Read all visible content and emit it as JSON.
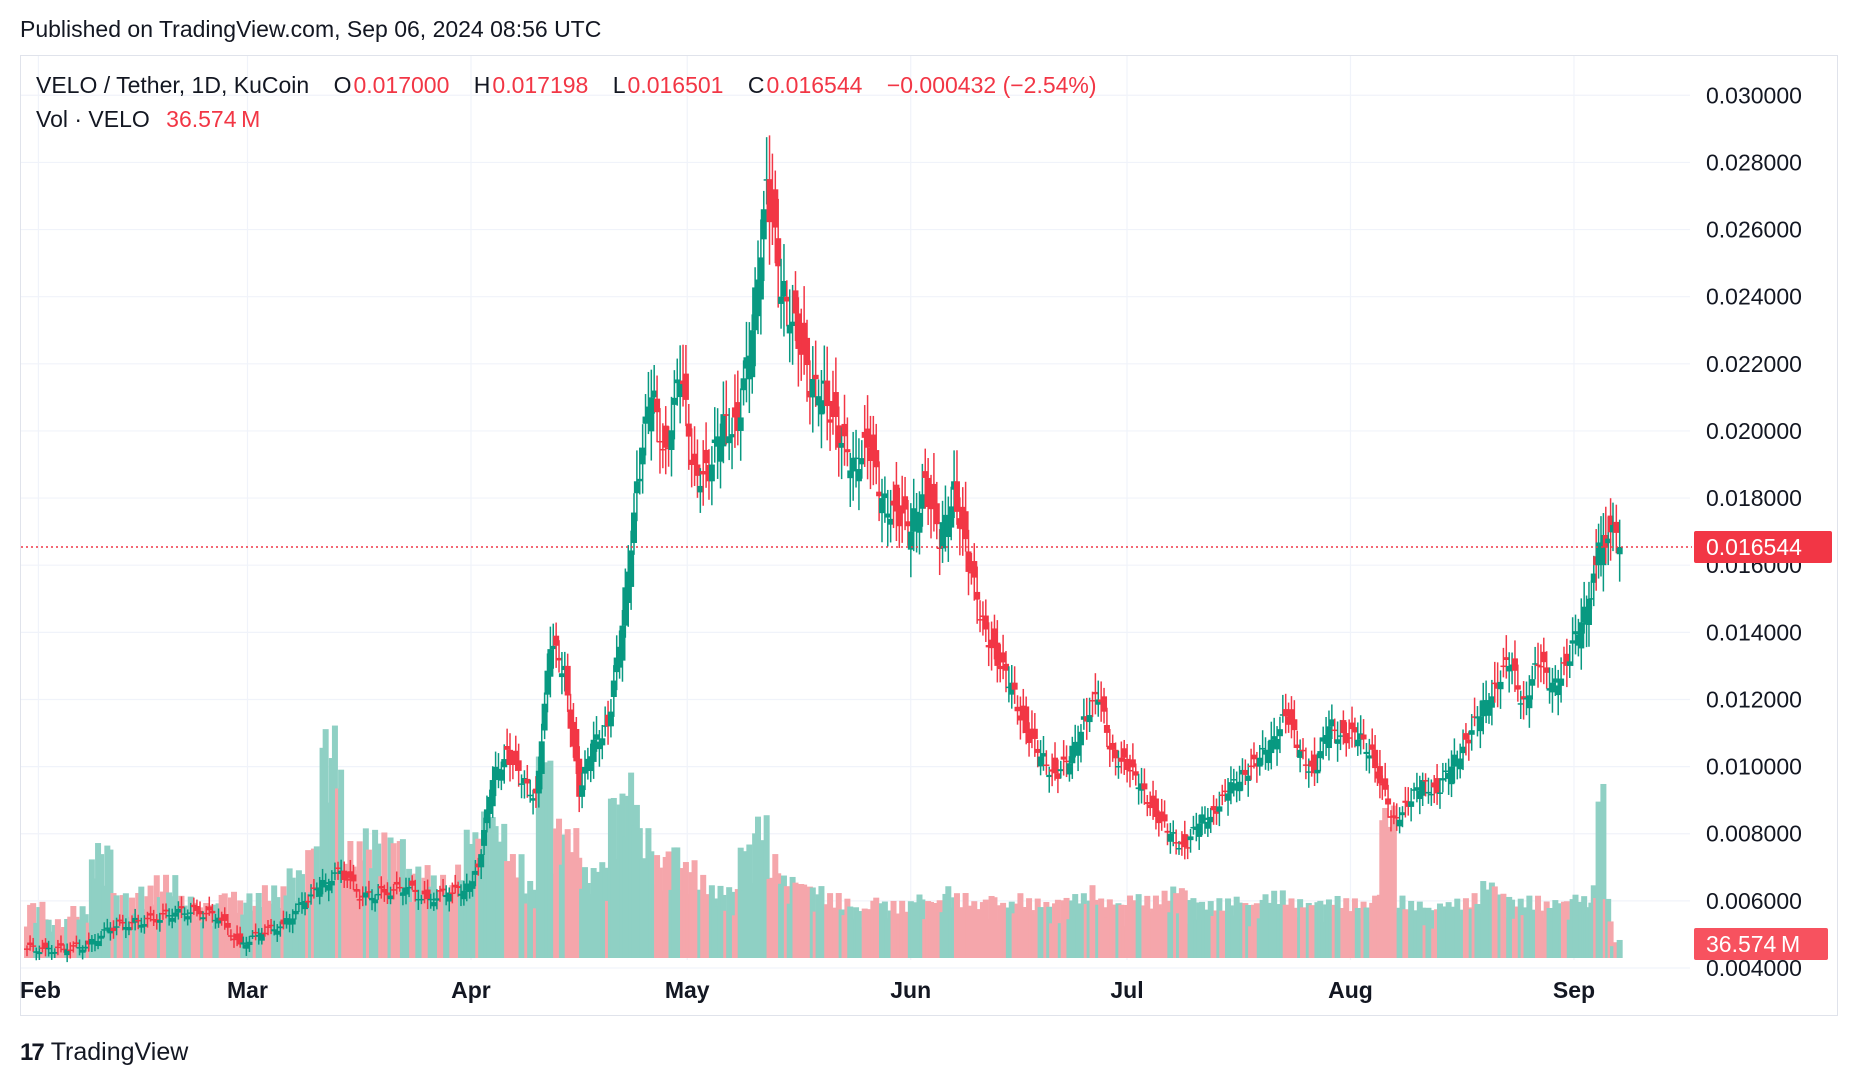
{
  "header": {
    "published": "Published on TradingView.com, Sep 06, 2024 08:56 UTC"
  },
  "legend": {
    "symbol": "VELO / Tether, 1D, KuCoin",
    "o_label": "O",
    "o_value": "0.017000",
    "h_label": "H",
    "h_value": "0.017198",
    "l_label": "L",
    "l_value": "0.016501",
    "c_label": "C",
    "c_value": "0.016544",
    "change": "−0.000432 (−2.54%)",
    "vol_label": "Vol · VELO",
    "vol_value": "36.574 M"
  },
  "footer": {
    "brand": "TradingView",
    "brand_mark": "17"
  },
  "colors": {
    "up": "#089981",
    "down": "#f23645",
    "up_vol": "#8fd0c4",
    "down_vol": "#f5a6ab",
    "grid": "#f0f3fa"
  },
  "chart_data": {
    "type": "candlestick",
    "y_ticks": [
      "0.030000",
      "0.028000",
      "0.026000",
      "0.024000",
      "0.022000",
      "0.020000",
      "0.018000",
      "0.016000",
      "0.014000",
      "0.012000",
      "0.010000",
      "0.008000",
      "0.006000",
      "0.004000"
    ],
    "ylim": [
      0.0026,
      0.0312
    ],
    "x_labels": [
      "Feb",
      "Mar",
      "Apr",
      "May",
      "Jun",
      "Jul",
      "Aug",
      "Sep"
    ],
    "last_price_label": "0.016544",
    "last_price": 0.016544,
    "volume_label": "36.574 M",
    "grid": true,
    "points": [
      {
        "d": "2024-01-30",
        "c": 0.00457,
        "v": 2.2
      },
      {
        "d": "2024-02-02",
        "c": 0.00455,
        "v": 1.5
      },
      {
        "d": "2024-02-05",
        "c": 0.0047,
        "v": 2.0
      },
      {
        "d": "2024-02-08",
        "c": 0.0052,
        "v": 4.5
      },
      {
        "d": "2024-02-11",
        "c": 0.00535,
        "v": 2.6
      },
      {
        "d": "2024-02-14",
        "c": 0.00545,
        "v": 2.8
      },
      {
        "d": "2024-02-17",
        "c": 0.00565,
        "v": 3.2
      },
      {
        "d": "2024-02-20",
        "c": 0.0057,
        "v": 2.4
      },
      {
        "d": "2024-02-23",
        "c": 0.0055,
        "v": 2.2
      },
      {
        "d": "2024-02-26",
        "c": 0.0047,
        "v": 2.6
      },
      {
        "d": "2024-02-29",
        "c": 0.00505,
        "v": 2.5
      },
      {
        "d": "2024-03-03",
        "c": 0.0053,
        "v": 2.8
      },
      {
        "d": "2024-03-06",
        "c": 0.006,
        "v": 3.5
      },
      {
        "d": "2024-03-09",
        "c": 0.0064,
        "v": 4.5
      },
      {
        "d": "2024-03-11",
        "c": 0.0069,
        "v": 9.0
      },
      {
        "d": "2024-03-14",
        "c": 0.0061,
        "v": 4.5
      },
      {
        "d": "2024-03-17",
        "c": 0.00625,
        "v": 5.0
      },
      {
        "d": "2024-03-20",
        "c": 0.0064,
        "v": 4.8
      },
      {
        "d": "2024-03-23",
        "c": 0.00605,
        "v": 3.6
      },
      {
        "d": "2024-03-26",
        "c": 0.00625,
        "v": 3.2
      },
      {
        "d": "2024-03-29",
        "c": 0.0063,
        "v": 3.6
      },
      {
        "d": "2024-03-31",
        "c": 0.007,
        "v": 5.0
      },
      {
        "d": "2024-04-02",
        "c": 0.0096,
        "v": 6.0
      },
      {
        "d": "2024-04-04",
        "c": 0.0105,
        "v": 5.2
      },
      {
        "d": "2024-04-06",
        "c": 0.0095,
        "v": 4.0
      },
      {
        "d": "2024-04-08",
        "c": 0.0092,
        "v": 3.0
      },
      {
        "d": "2024-04-10",
        "c": 0.0135,
        "v": 8.0
      },
      {
        "d": "2024-04-12",
        "c": 0.013,
        "v": 5.5
      },
      {
        "d": "2024-04-14",
        "c": 0.0091,
        "v": 5.0
      },
      {
        "d": "2024-04-16",
        "c": 0.0108,
        "v": 3.5
      },
      {
        "d": "2024-04-18",
        "c": 0.0112,
        "v": 3.8
      },
      {
        "d": "2024-04-20",
        "c": 0.0142,
        "v": 6.5
      },
      {
        "d": "2024-04-22",
        "c": 0.0185,
        "v": 7.2
      },
      {
        "d": "2024-04-24",
        "c": 0.021,
        "v": 5.0
      },
      {
        "d": "2024-04-26",
        "c": 0.0195,
        "v": 4.0
      },
      {
        "d": "2024-04-28",
        "c": 0.0215,
        "v": 4.5
      },
      {
        "d": "2024-04-30",
        "c": 0.019,
        "v": 3.8
      },
      {
        "d": "2024-05-02",
        "c": 0.0185,
        "v": 3.2
      },
      {
        "d": "2024-05-04",
        "c": 0.0205,
        "v": 2.8
      },
      {
        "d": "2024-05-06",
        "c": 0.02,
        "v": 2.8
      },
      {
        "d": "2024-05-08",
        "c": 0.023,
        "v": 4.5
      },
      {
        "d": "2024-05-10",
        "c": 0.0275,
        "v": 5.5
      },
      {
        "d": "2024-05-12",
        "c": 0.024,
        "v": 4.0
      },
      {
        "d": "2024-05-14",
        "c": 0.0235,
        "v": 3.2
      },
      {
        "d": "2024-05-16",
        "c": 0.021,
        "v": 3.0
      },
      {
        "d": "2024-05-18",
        "c": 0.0215,
        "v": 2.8
      },
      {
        "d": "2024-05-20",
        "c": 0.0195,
        "v": 2.5
      },
      {
        "d": "2024-05-22",
        "c": 0.0192,
        "v": 2.3
      },
      {
        "d": "2024-05-24",
        "c": 0.0195,
        "v": 2.0
      },
      {
        "d": "2024-05-26",
        "c": 0.018,
        "v": 2.4
      },
      {
        "d": "2024-05-28",
        "c": 0.0176,
        "v": 2.2
      },
      {
        "d": "2024-05-30",
        "c": 0.017,
        "v": 2.2
      },
      {
        "d": "2024-06-01",
        "c": 0.0186,
        "v": 2.5
      },
      {
        "d": "2024-06-03",
        "c": 0.0165,
        "v": 2.3
      },
      {
        "d": "2024-06-05",
        "c": 0.0185,
        "v": 2.8
      },
      {
        "d": "2024-06-07",
        "c": 0.0158,
        "v": 2.5
      },
      {
        "d": "2024-06-09",
        "c": 0.0145,
        "v": 2.2
      },
      {
        "d": "2024-06-11",
        "c": 0.013,
        "v": 2.5
      },
      {
        "d": "2024-06-13",
        "c": 0.0125,
        "v": 2.2
      },
      {
        "d": "2024-06-15",
        "c": 0.011,
        "v": 2.5
      },
      {
        "d": "2024-06-17",
        "c": 0.0103,
        "v": 2.3
      },
      {
        "d": "2024-06-19",
        "c": 0.0098,
        "v": 2.2
      },
      {
        "d": "2024-06-21",
        "c": 0.0101,
        "v": 2.4
      },
      {
        "d": "2024-06-23",
        "c": 0.0115,
        "v": 2.5
      },
      {
        "d": "2024-06-25",
        "c": 0.012,
        "v": 2.8
      },
      {
        "d": "2024-06-27",
        "c": 0.0105,
        "v": 2.3
      },
      {
        "d": "2024-06-29",
        "c": 0.0099,
        "v": 2.2
      },
      {
        "d": "2024-07-01",
        "c": 0.0095,
        "v": 2.5
      },
      {
        "d": "2024-07-03",
        "c": 0.0085,
        "v": 2.4
      },
      {
        "d": "2024-07-05",
        "c": 0.008,
        "v": 2.6
      },
      {
        "d": "2024-07-07",
        "c": 0.0076,
        "v": 2.8
      },
      {
        "d": "2024-07-09",
        "c": 0.0083,
        "v": 2.4
      },
      {
        "d": "2024-07-11",
        "c": 0.0087,
        "v": 2.2
      },
      {
        "d": "2024-07-13",
        "c": 0.0092,
        "v": 2.3
      },
      {
        "d": "2024-07-15",
        "c": 0.0099,
        "v": 2.4
      },
      {
        "d": "2024-07-17",
        "c": 0.01,
        "v": 2.2
      },
      {
        "d": "2024-07-19",
        "c": 0.0108,
        "v": 2.5
      },
      {
        "d": "2024-07-21",
        "c": 0.0115,
        "v": 2.6
      },
      {
        "d": "2024-07-23",
        "c": 0.0105,
        "v": 2.3
      },
      {
        "d": "2024-07-25",
        "c": 0.0098,
        "v": 2.2
      },
      {
        "d": "2024-07-27",
        "c": 0.0112,
        "v": 2.3
      },
      {
        "d": "2024-07-29",
        "c": 0.011,
        "v": 2.4
      },
      {
        "d": "2024-07-31",
        "c": 0.0108,
        "v": 2.3
      },
      {
        "d": "2024-08-02",
        "c": 0.0105,
        "v": 2.2
      },
      {
        "d": "2024-08-04",
        "c": 0.0095,
        "v": 2.6
      },
      {
        "d": "2024-08-05",
        "c": 0.0085,
        "v": 5.9
      },
      {
        "d": "2024-08-07",
        "c": 0.0088,
        "v": 2.4
      },
      {
        "d": "2024-08-09",
        "c": 0.0096,
        "v": 2.2
      },
      {
        "d": "2024-08-11",
        "c": 0.0092,
        "v": 2.0
      },
      {
        "d": "2024-08-13",
        "c": 0.01,
        "v": 2.2
      },
      {
        "d": "2024-08-15",
        "c": 0.0108,
        "v": 2.3
      },
      {
        "d": "2024-08-17",
        "c": 0.0115,
        "v": 2.5
      },
      {
        "d": "2024-08-19",
        "c": 0.0125,
        "v": 3.0
      },
      {
        "d": "2024-08-21",
        "c": 0.013,
        "v": 2.6
      },
      {
        "d": "2024-08-23",
        "c": 0.012,
        "v": 2.3
      },
      {
        "d": "2024-08-25",
        "c": 0.013,
        "v": 2.4
      },
      {
        "d": "2024-08-27",
        "c": 0.0125,
        "v": 2.2
      },
      {
        "d": "2024-08-29",
        "c": 0.013,
        "v": 2.3
      },
      {
        "d": "2024-08-31",
        "c": 0.0143,
        "v": 2.5
      },
      {
        "d": "2024-09-02",
        "c": 0.015,
        "v": 2.4
      },
      {
        "d": "2024-09-03",
        "c": 0.016,
        "v": 2.8
      },
      {
        "d": "2024-09-04",
        "c": 0.0169,
        "v": 6.9
      },
      {
        "d": "2024-09-05",
        "c": 0.01698,
        "v": 2.4
      },
      {
        "d": "2024-09-06",
        "c": 0.016544,
        "v": 0.7
      }
    ]
  }
}
